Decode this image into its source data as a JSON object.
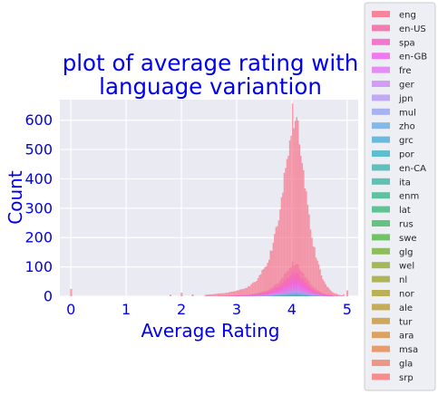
{
  "chart_data": {
    "type": "histogram",
    "title_lines": [
      "plot of average rating with",
      "language variantion"
    ],
    "xlabel": "Average Rating",
    "ylabel": "Count",
    "xlim": [
      -0.2,
      5.2
    ],
    "ylim": [
      0,
      670
    ],
    "xticks": [
      0,
      1,
      2,
      3,
      4,
      5
    ],
    "yticks": [
      0,
      100,
      200,
      300,
      400,
      500,
      600
    ],
    "grid": true,
    "legend_position": "right",
    "bin_width": 0.025,
    "series": [
      {
        "name": "eng",
        "color": "#f77189",
        "dominant": true
      },
      {
        "name": "en-US",
        "color": "#f369a3"
      },
      {
        "name": "spa",
        "color": "#f561c7"
      },
      {
        "name": "en-GB",
        "color": "#f065ef"
      },
      {
        "name": "fre",
        "color": "#e07cf5"
      },
      {
        "name": "ger",
        "color": "#cc8ef5"
      },
      {
        "name": "jpn",
        "color": "#b99df5"
      },
      {
        "name": "mul",
        "color": "#9aa8f0"
      },
      {
        "name": "zho",
        "color": "#6ab0ea"
      },
      {
        "name": "grc",
        "color": "#50b1da"
      },
      {
        "name": "por",
        "color": "#48b5c4"
      },
      {
        "name": "en-CA",
        "color": "#45b7b3"
      },
      {
        "name": "ita",
        "color": "#44b8a4"
      },
      {
        "name": "enm",
        "color": "#43b993"
      },
      {
        "name": "lat",
        "color": "#45bb82"
      },
      {
        "name": "rus",
        "color": "#4bbb6c"
      },
      {
        "name": "swe",
        "color": "#5cba4e"
      },
      {
        "name": "glg",
        "color": "#7cb443"
      },
      {
        "name": "wel",
        "color": "#93af3c"
      },
      {
        "name": "nl",
        "color": "#a3aa3b"
      },
      {
        "name": "nor",
        "color": "#b0a53b"
      },
      {
        "name": "ale",
        "color": "#bca03c"
      },
      {
        "name": "tur",
        "color": "#c89b3f"
      },
      {
        "name": "ara",
        "color": "#d79546"
      },
      {
        "name": "msa",
        "color": "#e68d56"
      },
      {
        "name": "gla",
        "color": "#ef8671"
      },
      {
        "name": "srp",
        "color": "#f77b7c"
      }
    ],
    "eng_counts": [
      {
        "x": 0.0,
        "y": 25
      },
      {
        "x": 1.8,
        "y": 5
      },
      {
        "x": 2.0,
        "y": 12
      },
      {
        "x": 2.2,
        "y": 6
      },
      {
        "x": 2.4,
        "y": 5
      },
      {
        "x": 2.5,
        "y": 6
      },
      {
        "x": 2.6,
        "y": 8
      },
      {
        "x": 2.7,
        "y": 10
      },
      {
        "x": 2.8,
        "y": 12
      },
      {
        "x": 2.9,
        "y": 15
      },
      {
        "x": 3.0,
        "y": 20
      },
      {
        "x": 3.05,
        "y": 22
      },
      {
        "x": 3.1,
        "y": 25
      },
      {
        "x": 3.15,
        "y": 30
      },
      {
        "x": 3.2,
        "y": 33
      },
      {
        "x": 3.25,
        "y": 40
      },
      {
        "x": 3.3,
        "y": 45
      },
      {
        "x": 3.35,
        "y": 55
      },
      {
        "x": 3.4,
        "y": 70
      },
      {
        "x": 3.45,
        "y": 85
      },
      {
        "x": 3.5,
        "y": 100
      },
      {
        "x": 3.55,
        "y": 120
      },
      {
        "x": 3.6,
        "y": 150
      },
      {
        "x": 3.65,
        "y": 180
      },
      {
        "x": 3.7,
        "y": 220
      },
      {
        "x": 3.75,
        "y": 270
      },
      {
        "x": 3.8,
        "y": 330
      },
      {
        "x": 3.85,
        "y": 400
      },
      {
        "x": 3.9,
        "y": 470
      },
      {
        "x": 3.95,
        "y": 560
      },
      {
        "x": 4.0,
        "y": 630
      },
      {
        "x": 4.05,
        "y": 590
      },
      {
        "x": 4.1,
        "y": 560
      },
      {
        "x": 4.15,
        "y": 500
      },
      {
        "x": 4.2,
        "y": 420
      },
      {
        "x": 4.25,
        "y": 340
      },
      {
        "x": 4.3,
        "y": 280
      },
      {
        "x": 4.35,
        "y": 210
      },
      {
        "x": 4.4,
        "y": 160
      },
      {
        "x": 4.45,
        "y": 120
      },
      {
        "x": 4.5,
        "y": 85
      },
      {
        "x": 4.55,
        "y": 60
      },
      {
        "x": 4.6,
        "y": 40
      },
      {
        "x": 4.65,
        "y": 28
      },
      {
        "x": 4.7,
        "y": 18
      },
      {
        "x": 4.75,
        "y": 12
      },
      {
        "x": 4.8,
        "y": 8
      },
      {
        "x": 4.85,
        "y": 5
      },
      {
        "x": 4.9,
        "y": 3
      },
      {
        "x": 5.0,
        "y": 20
      }
    ]
  }
}
